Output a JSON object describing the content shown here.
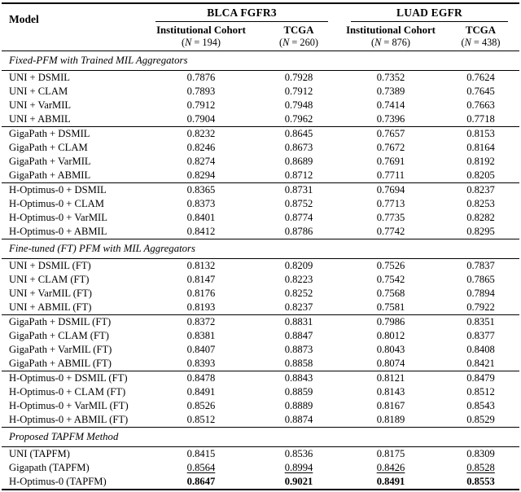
{
  "table": {
    "model_header": "Model",
    "groups": [
      {
        "label": "BLCA FGFR3",
        "subcols": [
          {
            "label": "Institutional Cohort",
            "n": {
              "pre": "(",
              "var": "N",
              "post": " = 194)"
            }
          },
          {
            "label": "TCGA",
            "n": {
              "pre": "(",
              "var": "N",
              "post": " = 260)"
            }
          }
        ]
      },
      {
        "label": "LUAD EGFR",
        "subcols": [
          {
            "label": "Institutional Cohort",
            "n": {
              "pre": "(",
              "var": "N",
              "post": " = 876)"
            }
          },
          {
            "label": "TCGA",
            "n": {
              "pre": "(",
              "var": "N",
              "post": " = 438)"
            }
          }
        ]
      }
    ],
    "sections": [
      {
        "title": "Fixed-PFM with Trained MIL Aggregators",
        "blocks": [
          [
            {
              "model": "UNI + DSMIL",
              "values": [
                "0.7876",
                "0.7928",
                "0.7352",
                "0.7624"
              ]
            },
            {
              "model": "UNI + CLAM",
              "values": [
                "0.7893",
                "0.7912",
                "0.7389",
                "0.7645"
              ]
            },
            {
              "model": "UNI + VarMIL",
              "values": [
                "0.7912",
                "0.7948",
                "0.7414",
                "0.7663"
              ]
            },
            {
              "model": "UNI + ABMIL",
              "values": [
                "0.7904",
                "0.7962",
                "0.7396",
                "0.7718"
              ]
            }
          ],
          [
            {
              "model": "GigaPath + DSMIL",
              "values": [
                "0.8232",
                "0.8645",
                "0.7657",
                "0.8153"
              ]
            },
            {
              "model": "GigaPath + CLAM",
              "values": [
                "0.8246",
                "0.8673",
                "0.7672",
                "0.8164"
              ]
            },
            {
              "model": "GigaPath + VarMIL",
              "values": [
                "0.8274",
                "0.8689",
                "0.7691",
                "0.8192"
              ]
            },
            {
              "model": "GigaPath + ABMIL",
              "values": [
                "0.8294",
                "0.8712",
                "0.7711",
                "0.8205"
              ]
            }
          ],
          [
            {
              "model": "H-Optimus-0 + DSMIL",
              "values": [
                "0.8365",
                "0.8731",
                "0.7694",
                "0.8237"
              ]
            },
            {
              "model": "H-Optimus-0 + CLAM",
              "values": [
                "0.8373",
                "0.8752",
                "0.7713",
                "0.8253"
              ]
            },
            {
              "model": "H-Optimus-0 + VarMIL",
              "values": [
                "0.8401",
                "0.8774",
                "0.7735",
                "0.8282"
              ]
            },
            {
              "model": "H-Optimus-0 + ABMIL",
              "values": [
                "0.8412",
                "0.8786",
                "0.7742",
                "0.8295"
              ]
            }
          ]
        ]
      },
      {
        "title": "Fine-tuned (FT) PFM with MIL Aggregators",
        "blocks": [
          [
            {
              "model": "UNI + DSMIL (FT)",
              "values": [
                "0.8132",
                "0.8209",
                "0.7526",
                "0.7837"
              ]
            },
            {
              "model": "UNI + CLAM (FT)",
              "values": [
                "0.8147",
                "0.8223",
                "0.7542",
                "0.7865"
              ]
            },
            {
              "model": "UNI + VarMIL (FT)",
              "values": [
                "0.8176",
                "0.8252",
                "0.7568",
                "0.7894"
              ]
            },
            {
              "model": "UNI + ABMIL (FT)",
              "values": [
                "0.8193",
                "0.8237",
                "0.7581",
                "0.7922"
              ]
            }
          ],
          [
            {
              "model": "GigaPath + DSMIL (FT)",
              "values": [
                "0.8372",
                "0.8831",
                "0.7986",
                "0.8351"
              ]
            },
            {
              "model": "GigaPath + CLAM (FT)",
              "values": [
                "0.8381",
                "0.8847",
                "0.8012",
                "0.8377"
              ]
            },
            {
              "model": "GigaPath + VarMIL (FT)",
              "values": [
                "0.8407",
                "0.8873",
                "0.8043",
                "0.8408"
              ]
            },
            {
              "model": "GigaPath + ABMIL (FT)",
              "values": [
                "0.8393",
                "0.8858",
                "0.8074",
                "0.8421"
              ]
            }
          ],
          [
            {
              "model": "H-Optimus-0 + DSMIL (FT)",
              "values": [
                "0.8478",
                "0.8843",
                "0.8121",
                "0.8479"
              ]
            },
            {
              "model": "H-Optimus-0 + CLAM (FT)",
              "values": [
                "0.8491",
                "0.8859",
                "0.8143",
                "0.8512"
              ]
            },
            {
              "model": "H-Optimus-0 + VarMIL (FT)",
              "values": [
                "0.8526",
                "0.8889",
                "0.8167",
                "0.8543"
              ]
            },
            {
              "model": "H-Optimus-0 + ABMIL (FT)",
              "values": [
                "0.8512",
                "0.8874",
                "0.8189",
                "0.8529"
              ]
            }
          ]
        ]
      },
      {
        "title": "Proposed TAPFM Method",
        "blocks": [
          [
            {
              "model": "UNI (TAPFM)",
              "values": [
                "0.8415",
                "0.8536",
                "0.8175",
                "0.8309"
              ]
            },
            {
              "model": "Gigapath (TAPFM)",
              "values": [
                "0.8564",
                "0.8994",
                "0.8426",
                "0.8528"
              ],
              "style": "underline"
            },
            {
              "model": "H-Optimus-0 (TAPFM)",
              "values": [
                "0.8647",
                "0.9021",
                "0.8491",
                "0.8553"
              ],
              "style": "bold"
            }
          ]
        ]
      }
    ]
  }
}
